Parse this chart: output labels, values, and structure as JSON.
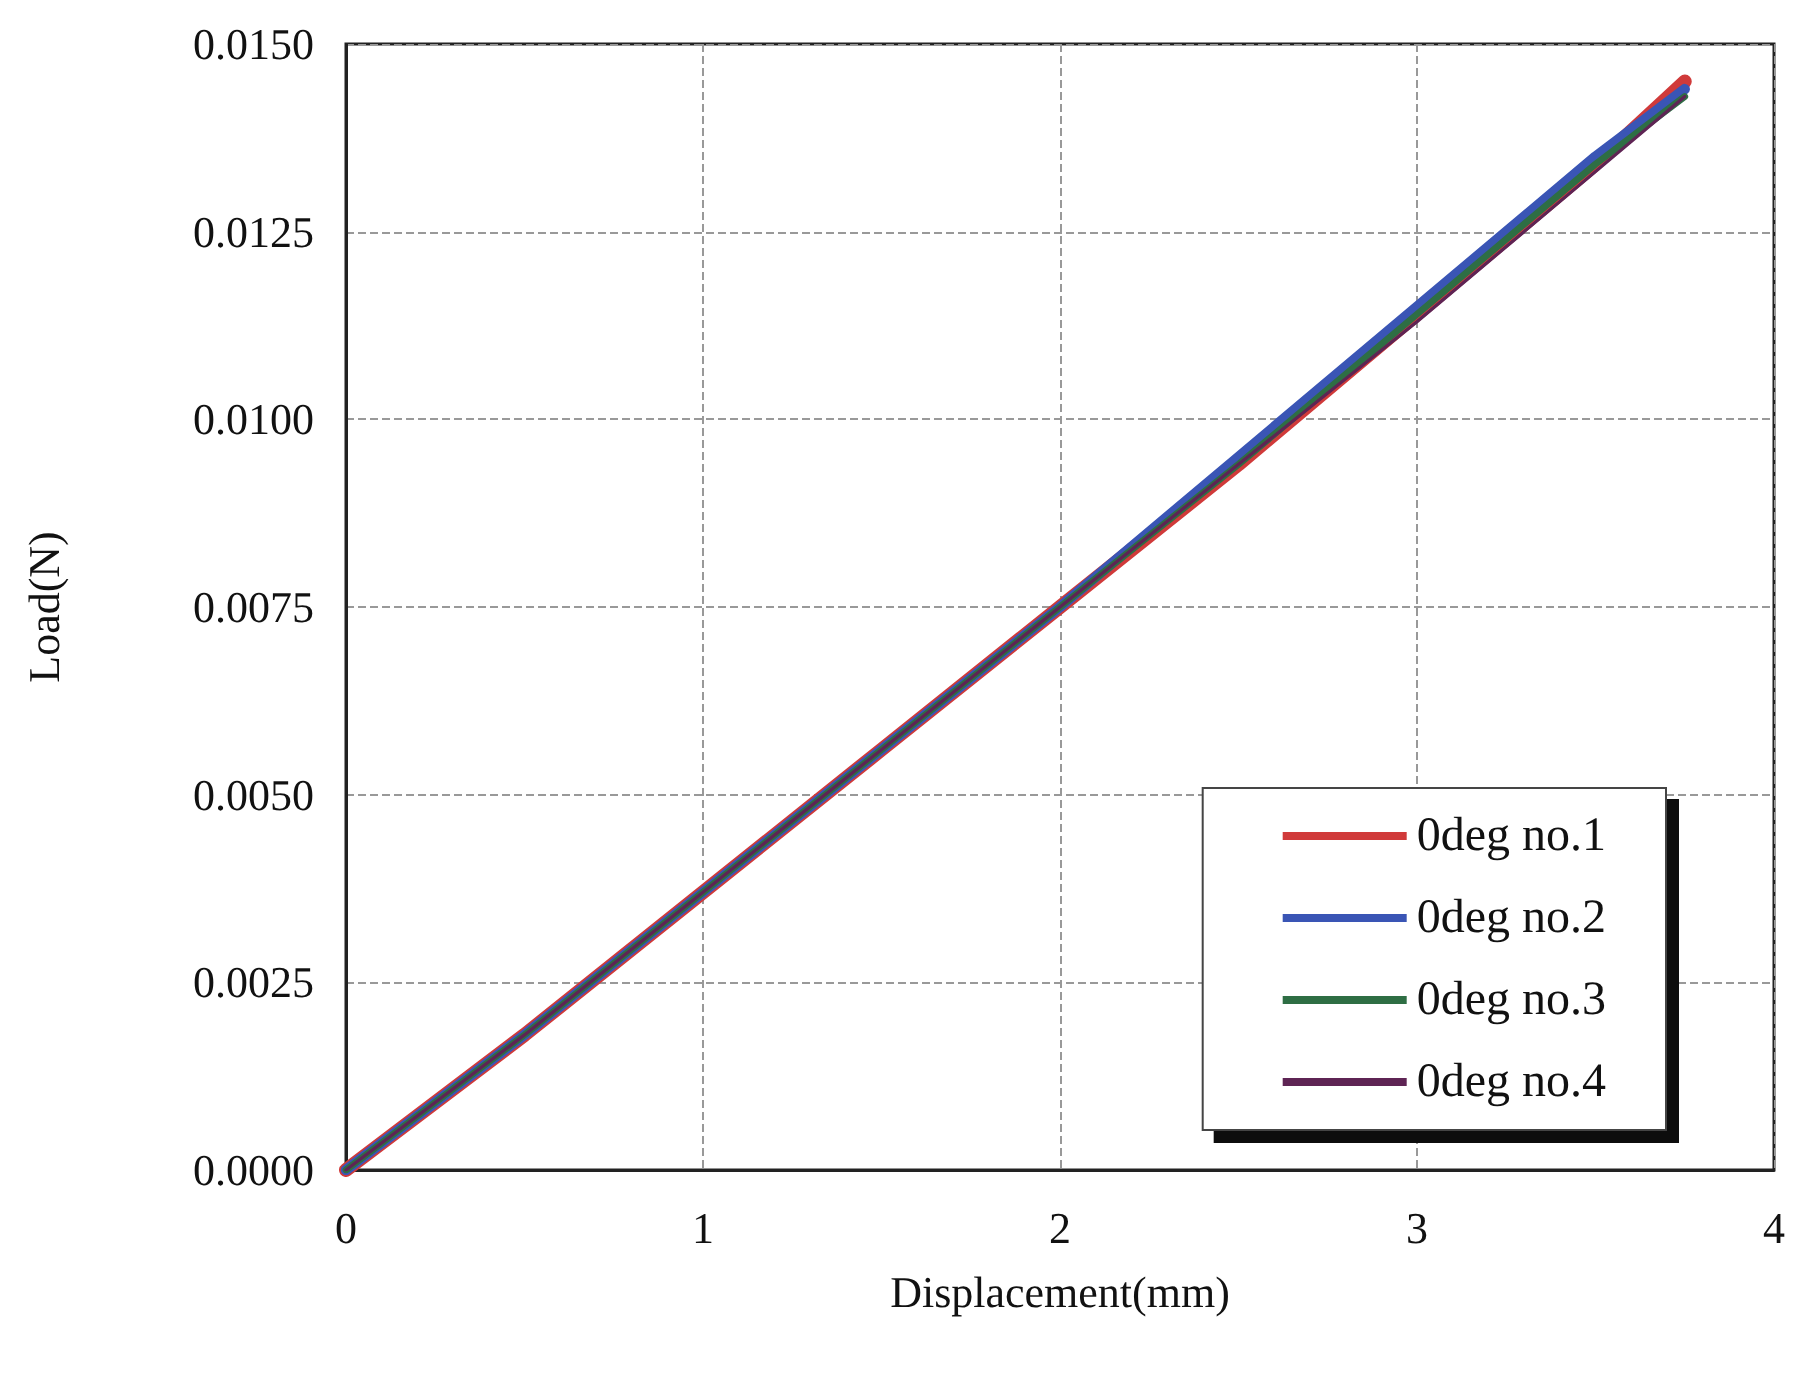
{
  "chart_data": {
    "type": "line",
    "xlabel": "Displacement(mm)",
    "ylabel": "Load(N)",
    "x": [
      0,
      0.5,
      1,
      1.5,
      2,
      2.5,
      3,
      3.5,
      3.75
    ],
    "series": [
      {
        "name": "0deg no.1",
        "color": "#d03a3a",
        "values": [
          0,
          0.0018,
          0.0037,
          0.0056,
          0.0075,
          0.0094,
          0.0114,
          0.0134,
          0.0145
        ]
      },
      {
        "name": "0deg no.2",
        "color": "#3a55b5",
        "values": [
          0,
          0.0018,
          0.0037,
          0.0056,
          0.0075,
          0.0095,
          0.0115,
          0.0135,
          0.0144
        ]
      },
      {
        "name": "0deg no.3",
        "color": "#2e6e44",
        "values": [
          0,
          0.0018,
          0.0037,
          0.0056,
          0.0075,
          0.0094,
          0.0114,
          0.0134,
          0.0143
        ]
      },
      {
        "name": "0deg no.4",
        "color": "#5e2454",
        "values": [
          0,
          0.0018,
          0.0037,
          0.0056,
          0.0075,
          0.0094,
          0.0113,
          0.0133,
          0.0143
        ]
      }
    ],
    "xlim": [
      0,
      4
    ],
    "xticks": [
      0,
      1,
      2,
      3,
      4
    ],
    "ylim": [
      0,
      0.015
    ],
    "yticks": [
      {
        "value": 0,
        "label": "0.0000"
      },
      {
        "value": 0.0025,
        "label": "0.0025"
      },
      {
        "value": 0.005,
        "label": "0.0050"
      },
      {
        "value": 0.0075,
        "label": "0.0075"
      },
      {
        "value": 0.01,
        "label": "0.0100"
      },
      {
        "value": 0.0125,
        "label": "0.0125"
      },
      {
        "value": 0.015,
        "label": "0.0150"
      }
    ],
    "grid": true,
    "legend": "bottom right",
    "marker": "none",
    "line_style": "solid"
  }
}
